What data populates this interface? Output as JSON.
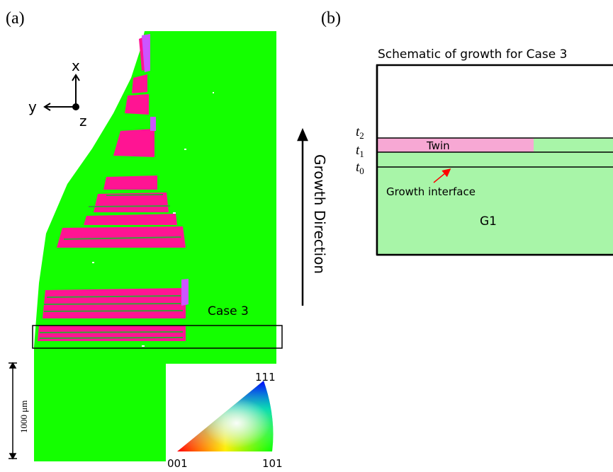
{
  "panel_a": {
    "label": "(a)",
    "axes": {
      "x": "x",
      "y": "y",
      "z": "z"
    },
    "case_label": "Case 3",
    "growth_direction": "Growth Direction",
    "scale_bar": "1000 μm",
    "ipf_key": {
      "corner_001": "001",
      "corner_101": "101",
      "corner_111": "111"
    },
    "colors": {
      "grain_green": "#14ff00",
      "twin_magenta": "#ff1493",
      "mix_purple": "#cc55ff"
    }
  },
  "panel_b": {
    "label": "(b)",
    "title": "Schematic of growth for Case 3",
    "twin_label": "Twin",
    "grain_label": "G1",
    "interface_label": "Growth interface",
    "times": {
      "t2_base": "t",
      "t2_sub": "2",
      "t1_base": "t",
      "t1_sub": "1",
      "t0_base": "t",
      "t0_sub": "0"
    },
    "colors": {
      "grain_fill": "#a8f5a8",
      "twin_fill": "#f7a8d4",
      "arrow": "#ff0000"
    }
  }
}
